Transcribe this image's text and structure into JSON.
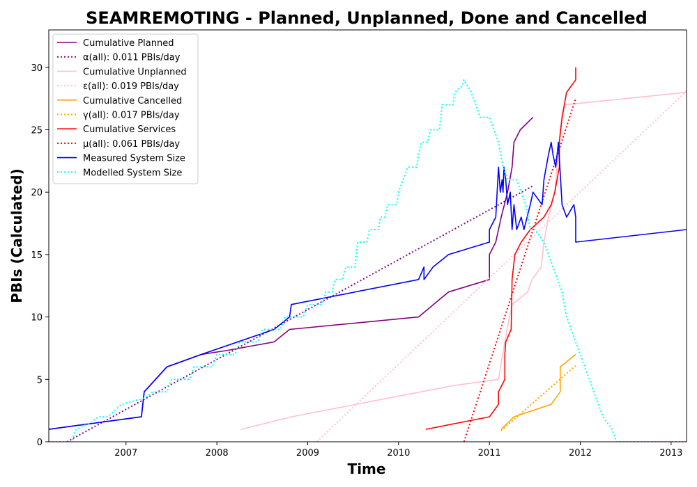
{
  "chart_data": {
    "type": "line",
    "title": "SEAMREMOTING - Planned, Unplanned, Done  and Cancelled",
    "xlabel": "Time",
    "ylabel": "PBIs (Calculated)",
    "xlim": [
      2006.15,
      2013.17
    ],
    "ylim": [
      0,
      33
    ],
    "x_ticks": [
      2007,
      2008,
      2009,
      2010,
      2011,
      2012,
      2013
    ],
    "x_tick_labels": [
      "2007",
      "2008",
      "2009",
      "2010",
      "2011",
      "2012",
      "2013"
    ],
    "y_ticks": [
      0,
      5,
      10,
      15,
      20,
      25,
      30
    ],
    "y_tick_labels": [
      "0",
      "5",
      "10",
      "15",
      "20",
      "25",
      "30"
    ],
    "grid": false,
    "legend_position": "top-left",
    "series": [
      {
        "name": "Cumulative Planned",
        "style": "solid",
        "color": "#800080",
        "points": [
          [
            2006.15,
            1
          ],
          [
            2007.17,
            2
          ],
          [
            2007.2,
            4
          ],
          [
            2007.45,
            6
          ],
          [
            2007.83,
            7
          ],
          [
            2008.1,
            7.3
          ],
          [
            2008.4,
            7.7
          ],
          [
            2008.63,
            8
          ],
          [
            2008.8,
            9
          ],
          [
            2010.22,
            10
          ],
          [
            2010.55,
            12
          ],
          [
            2011.0,
            13
          ],
          [
            2011.0,
            15
          ],
          [
            2011.07,
            16
          ],
          [
            2011.13,
            18
          ],
          [
            2011.2,
            20
          ],
          [
            2011.25,
            22
          ],
          [
            2011.27,
            24
          ],
          [
            2011.34,
            25
          ],
          [
            2011.48,
            26
          ]
        ]
      },
      {
        "name": "α(all): 0.011 PBIs/day",
        "style": "dotted",
        "color": "#800080",
        "points": [
          [
            2006.35,
            0
          ],
          [
            2011.48,
            20.5
          ]
        ]
      },
      {
        "name": "Cumulative Unplanned",
        "style": "solid",
        "color": "#ffc0cb",
        "points": [
          [
            2008.27,
            1
          ],
          [
            2008.82,
            2
          ],
          [
            2010.6,
            4.5
          ],
          [
            2011.1,
            5
          ],
          [
            2011.17,
            8
          ],
          [
            2011.22,
            10
          ],
          [
            2011.25,
            11
          ],
          [
            2011.42,
            12
          ],
          [
            2011.47,
            13
          ],
          [
            2011.57,
            14
          ],
          [
            2011.6,
            16
          ],
          [
            2011.65,
            18
          ],
          [
            2011.72,
            20
          ],
          [
            2011.78,
            25
          ],
          [
            2011.83,
            27
          ],
          [
            2013.17,
            28
          ]
        ]
      },
      {
        "name": "ε(all): 0.019 PBIs/day",
        "style": "dotted",
        "color": "#ffc0cb",
        "points": [
          [
            2009.1,
            0
          ],
          [
            2013.17,
            28.1
          ]
        ]
      },
      {
        "name": "Cumulative Cancelled",
        "style": "solid",
        "color": "#ffa500",
        "points": [
          [
            2011.13,
            1
          ],
          [
            2011.27,
            2
          ],
          [
            2011.68,
            3
          ],
          [
            2011.78,
            4
          ],
          [
            2011.78,
            6
          ],
          [
            2011.95,
            7
          ]
        ]
      },
      {
        "name": "γ(all): 0.017 PBIs/day",
        "style": "dotted",
        "color": "#ffa500",
        "points": [
          [
            2011.13,
            0.9
          ],
          [
            2011.95,
            6.1
          ]
        ]
      },
      {
        "name": "Cumulative Services",
        "style": "solid",
        "color": "#ff0000",
        "points": [
          [
            2010.3,
            1
          ],
          [
            2011.0,
            2
          ],
          [
            2011.1,
            3
          ],
          [
            2011.1,
            4
          ],
          [
            2011.17,
            5
          ],
          [
            2011.17,
            7
          ],
          [
            2011.18,
            8
          ],
          [
            2011.24,
            9
          ],
          [
            2011.25,
            13
          ],
          [
            2011.28,
            15
          ],
          [
            2011.35,
            16
          ],
          [
            2011.45,
            17
          ],
          [
            2011.6,
            18
          ],
          [
            2011.68,
            19
          ],
          [
            2011.72,
            20
          ],
          [
            2011.77,
            22
          ],
          [
            2011.77,
            24
          ],
          [
            2011.8,
            26
          ],
          [
            2011.85,
            28
          ],
          [
            2011.9,
            28.5
          ],
          [
            2011.95,
            29
          ],
          [
            2011.95,
            30
          ]
        ]
      },
      {
        "name": "μ(all): 0.061 PBIs/day",
        "style": "dotted",
        "color": "#ff0000",
        "points": [
          [
            2010.72,
            0
          ],
          [
            2011.95,
            27.5
          ]
        ]
      },
      {
        "name": "Measured System Size",
        "style": "solid",
        "color": "#0000ff",
        "points": [
          [
            2006.15,
            1
          ],
          [
            2007.17,
            2
          ],
          [
            2007.2,
            4
          ],
          [
            2007.45,
            6
          ],
          [
            2007.83,
            7
          ],
          [
            2008.63,
            9
          ],
          [
            2008.8,
            10
          ],
          [
            2008.82,
            11
          ],
          [
            2010.22,
            13
          ],
          [
            2010.28,
            14
          ],
          [
            2010.28,
            13
          ],
          [
            2010.38,
            14
          ],
          [
            2010.55,
            15
          ],
          [
            2011.0,
            16
          ],
          [
            2011.0,
            17
          ],
          [
            2011.07,
            18
          ],
          [
            2011.1,
            22
          ],
          [
            2011.12,
            20
          ],
          [
            2011.14,
            21
          ],
          [
            2011.15,
            20
          ],
          [
            2011.16,
            22
          ],
          [
            2011.18,
            21
          ],
          [
            2011.2,
            19
          ],
          [
            2011.23,
            20
          ],
          [
            2011.25,
            17
          ],
          [
            2011.27,
            19
          ],
          [
            2011.3,
            17
          ],
          [
            2011.35,
            18
          ],
          [
            2011.38,
            17
          ],
          [
            2011.45,
            19
          ],
          [
            2011.48,
            20
          ],
          [
            2011.58,
            19
          ],
          [
            2011.6,
            21
          ],
          [
            2011.65,
            23
          ],
          [
            2011.68,
            24
          ],
          [
            2011.7,
            23
          ],
          [
            2011.73,
            22
          ],
          [
            2011.76,
            24
          ],
          [
            2011.8,
            19
          ],
          [
            2011.85,
            18
          ],
          [
            2011.93,
            19
          ],
          [
            2011.95,
            18
          ],
          [
            2011.95,
            16
          ],
          [
            2013.17,
            17
          ]
        ]
      },
      {
        "name": "Modelled System Size",
        "style": "dotted",
        "color": "#00ffff",
        "points": [
          [
            2006.15,
            0
          ],
          [
            2006.3,
            0
          ],
          [
            2006.4,
            0
          ],
          [
            2006.45,
            1
          ],
          [
            2006.6,
            1.5
          ],
          [
            2006.7,
            2
          ],
          [
            2006.8,
            2
          ],
          [
            2006.95,
            3
          ],
          [
            2007.2,
            3.5
          ],
          [
            2007.3,
            4
          ],
          [
            2007.45,
            4
          ],
          [
            2007.5,
            5
          ],
          [
            2007.7,
            5
          ],
          [
            2007.75,
            6
          ],
          [
            2007.95,
            6
          ],
          [
            2008.0,
            7
          ],
          [
            2008.2,
            7
          ],
          [
            2008.25,
            8
          ],
          [
            2008.45,
            8
          ],
          [
            2008.5,
            9
          ],
          [
            2008.7,
            9
          ],
          [
            2008.75,
            10
          ],
          [
            2008.95,
            10
          ],
          [
            2009.0,
            11
          ],
          [
            2009.15,
            11
          ],
          [
            2009.2,
            12
          ],
          [
            2009.27,
            12
          ],
          [
            2009.3,
            13
          ],
          [
            2009.38,
            13
          ],
          [
            2009.42,
            14
          ],
          [
            2009.52,
            14
          ],
          [
            2009.55,
            16
          ],
          [
            2009.65,
            16
          ],
          [
            2009.68,
            17
          ],
          [
            2009.78,
            17
          ],
          [
            2009.8,
            18
          ],
          [
            2009.85,
            18
          ],
          [
            2009.88,
            19
          ],
          [
            2009.98,
            19
          ],
          [
            2010.0,
            20
          ],
          [
            2010.05,
            21
          ],
          [
            2010.1,
            22
          ],
          [
            2010.2,
            22
          ],
          [
            2010.22,
            23
          ],
          [
            2010.25,
            24
          ],
          [
            2010.32,
            24
          ],
          [
            2010.35,
            25
          ],
          [
            2010.45,
            25
          ],
          [
            2010.48,
            27
          ],
          [
            2010.6,
            27
          ],
          [
            2010.62,
            28
          ],
          [
            2010.7,
            28.5
          ],
          [
            2010.72,
            29
          ],
          [
            2010.8,
            28
          ],
          [
            2010.85,
            27
          ],
          [
            2010.9,
            26
          ],
          [
            2011.0,
            26
          ],
          [
            2011.05,
            25
          ],
          [
            2011.1,
            24
          ],
          [
            2011.15,
            22
          ],
          [
            2011.2,
            21
          ],
          [
            2011.3,
            21
          ],
          [
            2011.35,
            20
          ],
          [
            2011.4,
            19
          ],
          [
            2011.45,
            17
          ],
          [
            2011.5,
            17
          ],
          [
            2011.6,
            16
          ],
          [
            2011.7,
            14
          ],
          [
            2011.75,
            13
          ],
          [
            2011.8,
            12
          ],
          [
            2011.85,
            10
          ],
          [
            2011.9,
            9
          ],
          [
            2011.95,
            8
          ],
          [
            2012.0,
            7
          ],
          [
            2012.05,
            6
          ],
          [
            2012.1,
            5
          ],
          [
            2012.15,
            4
          ],
          [
            2012.2,
            3
          ],
          [
            2012.25,
            2
          ],
          [
            2012.35,
            1
          ],
          [
            2012.4,
            0
          ],
          [
            2012.5,
            0
          ],
          [
            2013.17,
            0
          ]
        ]
      }
    ]
  }
}
